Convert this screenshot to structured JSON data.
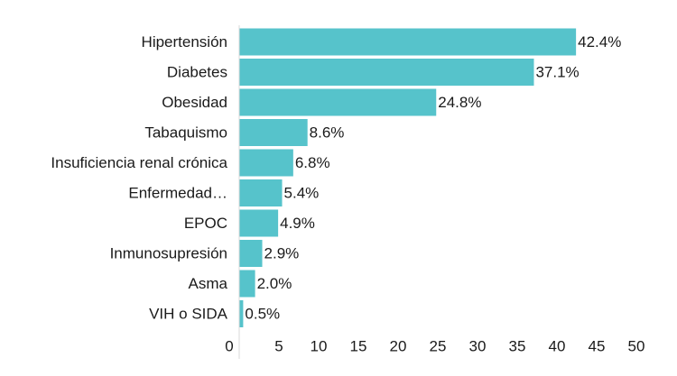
{
  "chart_data": {
    "type": "bar",
    "orientation": "horizontal",
    "categories": [
      "Hipertensión",
      "Diabetes",
      "Obesidad",
      "Tabaquismo",
      "Insuficiencia renal crónica",
      "Enfermedad…",
      "EPOC",
      "Inmunosupresión",
      "Asma",
      "VIH o SIDA"
    ],
    "values": [
      42.4,
      37.1,
      24.8,
      8.6,
      6.8,
      5.4,
      4.9,
      2.9,
      2.0,
      0.5
    ],
    "value_labels": [
      "42.4%",
      "37.1%",
      "24.8%",
      "8.6%",
      "6.8%",
      "5.4%",
      "4.9%",
      "2.9%",
      "2.0%",
      "0.5%"
    ],
    "xlim": [
      0,
      50
    ],
    "xticks": [
      0,
      5,
      10,
      15,
      20,
      25,
      30,
      35,
      40,
      45,
      50
    ],
    "bar_color": "#56c3cb",
    "grid": false,
    "legend": "none"
  }
}
